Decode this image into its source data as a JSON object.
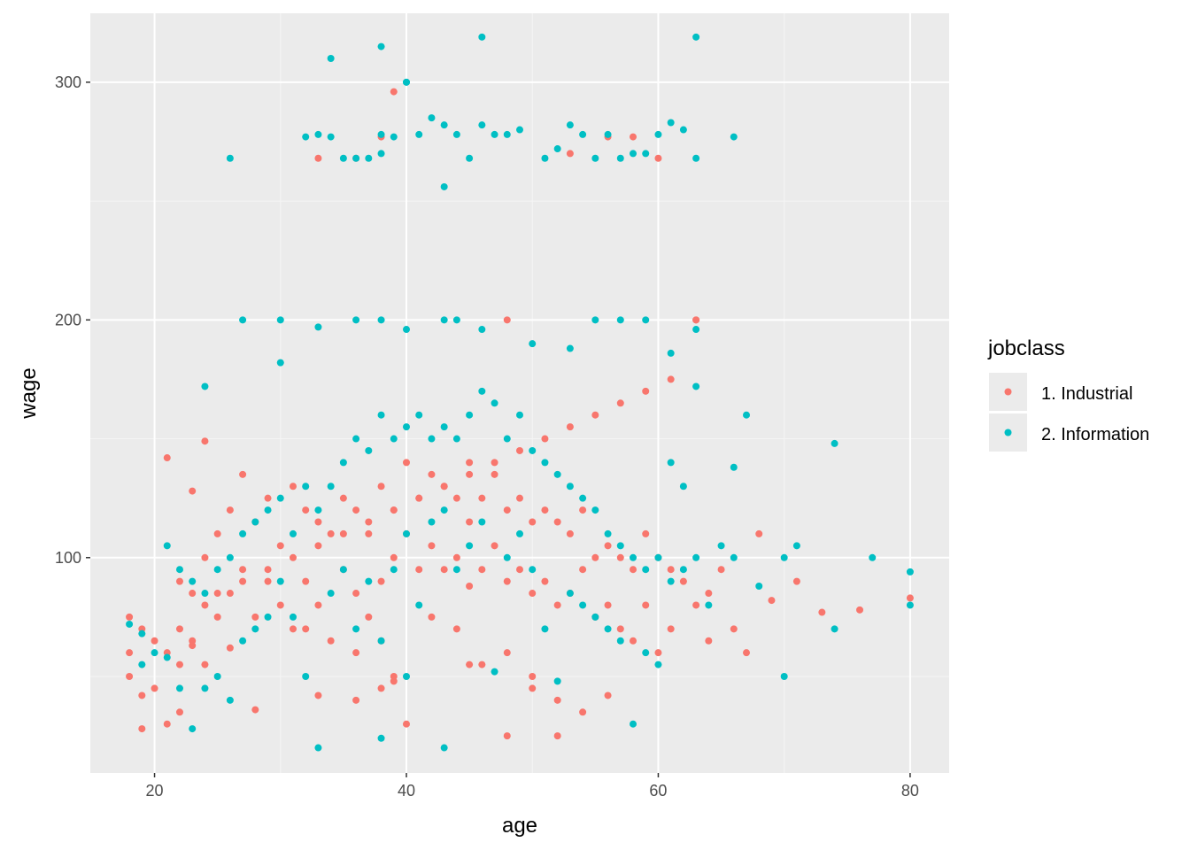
{
  "chart_data": {
    "type": "scatter",
    "title": "",
    "xlabel": "age",
    "ylabel": "wage",
    "xlim": [
      14.9,
      83.1
    ],
    "ylim": [
      9.4,
      329.0
    ],
    "x_ticks": [
      20,
      40,
      60,
      80
    ],
    "y_ticks": [
      100,
      200,
      300
    ],
    "x_tick_labels": [
      "20",
      "40",
      "60",
      "80"
    ],
    "y_tick_labels": [
      "100",
      "200",
      "300"
    ],
    "grid": true,
    "legend": {
      "title": "jobclass",
      "position": "right"
    },
    "colors": {
      "panel": "#ebebeb",
      "grid_major": "#ffffff",
      "grid_minor": "#f5f5f5",
      "tick_text": "#4d4d4d"
    },
    "series": [
      {
        "name": "1. Industrial",
        "color": "#F8766D",
        "x": [
          18,
          18,
          18,
          19,
          19,
          19,
          20,
          20,
          21,
          21,
          21,
          22,
          22,
          22,
          23,
          23,
          23,
          24,
          24,
          24,
          25,
          25,
          26,
          26,
          26,
          27,
          27,
          28,
          28,
          28,
          29,
          29,
          30,
          30,
          31,
          31,
          32,
          32,
          33,
          33,
          33,
          34,
          34,
          35,
          35,
          36,
          36,
          36,
          37,
          37,
          38,
          38,
          38,
          39,
          39,
          39,
          40,
          40,
          40,
          41,
          41,
          42,
          42,
          42,
          43,
          43,
          44,
          44,
          44,
          45,
          45,
          45,
          46,
          46,
          46,
          47,
          47,
          48,
          48,
          48,
          49,
          49,
          50,
          50,
          50,
          51,
          51,
          52,
          52,
          52,
          53,
          53,
          54,
          54,
          55,
          55,
          56,
          56,
          56,
          57,
          57,
          58,
          58,
          59,
          59,
          60,
          60,
          61,
          61,
          62,
          63,
          63,
          64,
          64,
          65,
          66,
          67,
          68,
          69,
          71,
          73,
          76,
          80,
          22,
          23,
          24,
          25,
          27,
          29,
          31,
          33,
          35,
          37,
          39,
          41,
          43,
          45,
          47,
          49,
          51,
          53,
          55,
          57,
          59,
          61,
          33,
          36,
          38,
          39,
          53,
          56,
          58,
          60,
          48,
          63,
          32,
          36,
          38,
          39,
          45,
          48,
          50,
          52,
          54
        ],
        "y": [
          75,
          60,
          50,
          70,
          42,
          28,
          65,
          45,
          60,
          30,
          142,
          90,
          55,
          35,
          85,
          63,
          128,
          100,
          55,
          149,
          110,
          75,
          120,
          85,
          62,
          135,
          95,
          115,
          75,
          36,
          125,
          90,
          105,
          80,
          130,
          70,
          120,
          90,
          115,
          80,
          42,
          110,
          65,
          125,
          95,
          120,
          85,
          60,
          110,
          75,
          130,
          90,
          65,
          120,
          100,
          48,
          140,
          110,
          30,
          125,
          95,
          135,
          105,
          75,
          130,
          95,
          125,
          100,
          70,
          140,
          115,
          88,
          125,
          95,
          55,
          135,
          105,
          120,
          90,
          25,
          125,
          95,
          115,
          85,
          50,
          120,
          90,
          115,
          80,
          25,
          110,
          85,
          120,
          95,
          100,
          75,
          105,
          80,
          42,
          100,
          70,
          95,
          65,
          110,
          80,
          100,
          60,
          95,
          70,
          90,
          80,
          200,
          85,
          65,
          95,
          70,
          60,
          110,
          82,
          90,
          77,
          78,
          83,
          70,
          65,
          80,
          85,
          90,
          95,
          100,
          105,
          110,
          115,
          120,
          125,
          130,
          135,
          140,
          145,
          150,
          155,
          160,
          165,
          170,
          175,
          268,
          268,
          277,
          296,
          270,
          277,
          277,
          268,
          200,
          200,
          70,
          40,
          45,
          50,
          55,
          60,
          45,
          40,
          35
        ],
        "point_radius": 4
      },
      {
        "name": "2. Information",
        "color": "#00BFC4",
        "x": [
          18,
          19,
          19,
          20,
          21,
          21,
          22,
          22,
          23,
          23,
          24,
          24,
          24,
          25,
          25,
          26,
          26,
          27,
          27,
          28,
          28,
          29,
          29,
          30,
          30,
          30,
          31,
          31,
          32,
          32,
          33,
          33,
          34,
          34,
          35,
          35,
          36,
          36,
          37,
          37,
          38,
          38,
          38,
          39,
          39,
          40,
          40,
          40,
          41,
          41,
          42,
          42,
          43,
          43,
          43,
          44,
          44,
          45,
          45,
          46,
          46,
          47,
          47,
          48,
          48,
          49,
          49,
          50,
          50,
          51,
          51,
          52,
          52,
          53,
          53,
          54,
          54,
          55,
          55,
          56,
          56,
          57,
          57,
          58,
          58,
          59,
          59,
          60,
          60,
          61,
          61,
          62,
          62,
          63,
          63,
          64,
          65,
          66,
          66,
          67,
          68,
          70,
          70,
          71,
          74,
          74,
          77,
          80,
          80,
          26,
          32,
          33,
          34,
          35,
          36,
          37,
          38,
          38,
          39,
          40,
          41,
          42,
          43,
          43,
          44,
          45,
          46,
          47,
          48,
          49,
          51,
          52,
          53,
          54,
          55,
          56,
          57,
          58,
          59,
          60,
          61,
          62,
          63,
          66,
          34,
          38,
          40,
          46,
          63,
          27,
          30,
          33,
          36,
          38,
          40,
          43,
          44,
          46,
          50,
          53,
          55,
          57,
          59,
          61,
          63
        ],
        "y": [
          72,
          68,
          55,
          60,
          105,
          58,
          95,
          45,
          90,
          28,
          85,
          172,
          45,
          95,
          50,
          100,
          40,
          110,
          65,
          115,
          70,
          120,
          75,
          125,
          90,
          182,
          110,
          75,
          130,
          50,
          120,
          20,
          130,
          85,
          140,
          95,
          150,
          70,
          145,
          90,
          160,
          65,
          24,
          150,
          95,
          155,
          110,
          50,
          160,
          80,
          150,
          115,
          155,
          120,
          20,
          150,
          95,
          160,
          105,
          170,
          115,
          165,
          52,
          150,
          100,
          160,
          110,
          145,
          95,
          140,
          70,
          135,
          48,
          130,
          85,
          125,
          80,
          120,
          75,
          110,
          70,
          105,
          65,
          100,
          30,
          95,
          60,
          100,
          55,
          140,
          90,
          130,
          95,
          172,
          100,
          80,
          105,
          100,
          138,
          160,
          88,
          100,
          50,
          105,
          148,
          70,
          100,
          94,
          80,
          268,
          277,
          278,
          310,
          268,
          268,
          268,
          270,
          315,
          277,
          300,
          278,
          285,
          282,
          256,
          278,
          268,
          282,
          278,
          278,
          280,
          268,
          272,
          282,
          278,
          268,
          278,
          268,
          270,
          270,
          278,
          283,
          280,
          268,
          277,
          277,
          278,
          300,
          319,
          319,
          200,
          200,
          197,
          200,
          200,
          196,
          200,
          200,
          196,
          190,
          188,
          200,
          200,
          200,
          186,
          196
        ],
        "point_radius": 4
      }
    ]
  }
}
